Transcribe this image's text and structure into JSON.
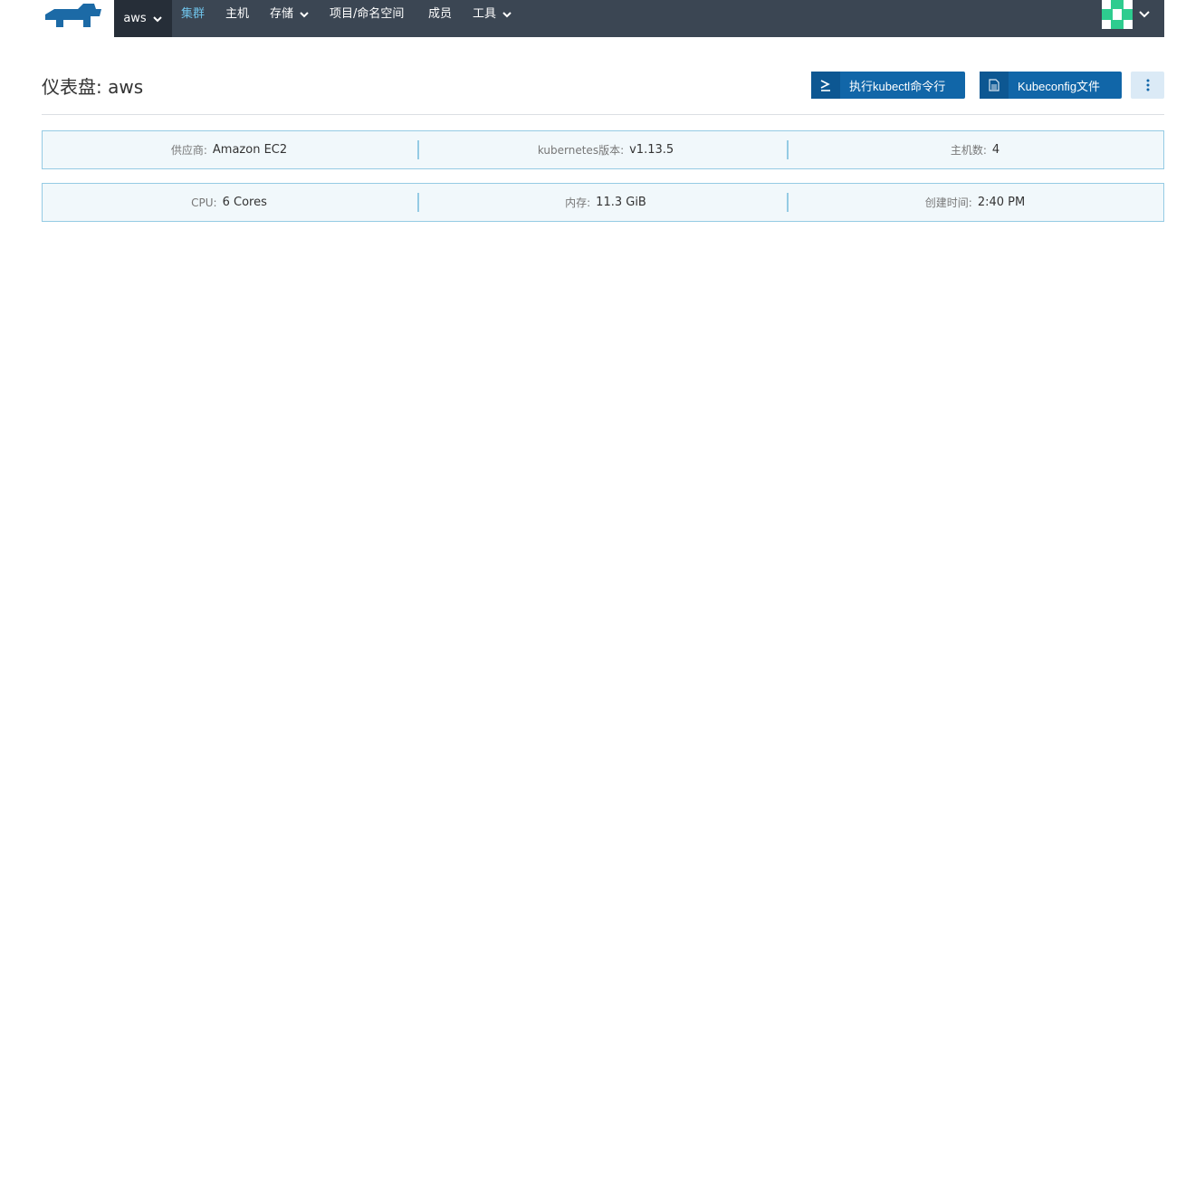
{
  "topbar": {
    "cluster": "aws",
    "nav": [
      "集群",
      "主机",
      "存储",
      "项目/命名空间",
      "成员",
      "工具"
    ],
    "accent": "#6fc3ea",
    "brand_icon": "rancher-logo-icon"
  },
  "header": {
    "title": "仪表盘: aws",
    "kubectl_label": "执行kubectl命令行",
    "kubeconfig_label": "Kubeconfig文件",
    "button_color": "#1166a8"
  },
  "info": {
    "row1": [
      {
        "key": "供应商:",
        "value": "Amazon EC2"
      },
      {
        "key": "kubernetes版本:",
        "value": "v1.13.5"
      },
      {
        "key": "主机数:",
        "value": "4"
      }
    ],
    "row2": [
      {
        "key": "CPU:",
        "value": "6 Cores"
      },
      {
        "key": "内存:",
        "value": "11.3 GiB"
      },
      {
        "key": "创建时间:",
        "value": "2:40 PM"
      }
    ]
  }
}
